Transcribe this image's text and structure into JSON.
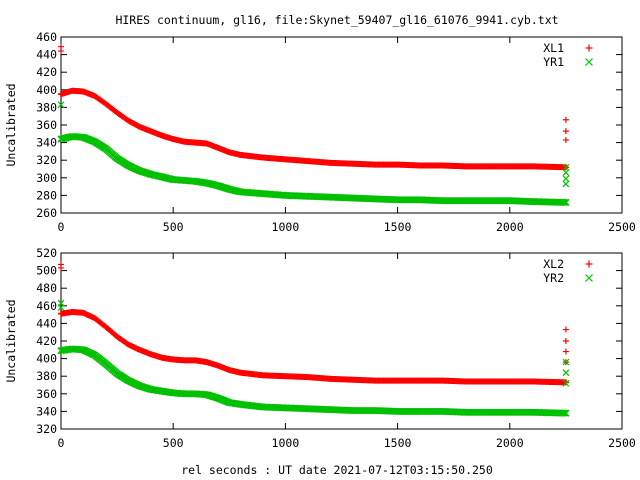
{
  "chart_data": [
    {
      "type": "scatter",
      "title": "HIRES continuum, gl16, file:Skynet_59407_gl16_61076_9941.cyb.txt",
      "xlabel": "",
      "ylabel": "Uncalibrated",
      "xlim": [
        0,
        2500
      ],
      "ylim": [
        260,
        460
      ],
      "xticks": [
        "0",
        "500",
        "1000",
        "1500",
        "2000",
        "2500"
      ],
      "yticks": [
        "260",
        "280",
        "300",
        "320",
        "340",
        "360",
        "380",
        "400",
        "420",
        "440",
        "460"
      ],
      "grid": false,
      "legend_position": "top-right",
      "series": [
        {
          "name": "XL1",
          "marker": "plus",
          "color": "#ff0000",
          "curve": [
            [
              0,
              395
            ],
            [
              50,
              399
            ],
            [
              100,
              398
            ],
            [
              150,
              393
            ],
            [
              200,
              384
            ],
            [
              250,
              374
            ],
            [
              300,
              365
            ],
            [
              350,
              358
            ],
            [
              400,
              353
            ],
            [
              450,
              348
            ],
            [
              500,
              344
            ],
            [
              550,
              341
            ],
            [
              600,
              340
            ],
            [
              650,
              339
            ],
            [
              700,
              334
            ],
            [
              750,
              329
            ],
            [
              800,
              326
            ],
            [
              900,
              323
            ],
            [
              1000,
              321
            ],
            [
              1100,
              319
            ],
            [
              1200,
              317
            ],
            [
              1300,
              316
            ],
            [
              1400,
              315
            ],
            [
              1500,
              315
            ],
            [
              1600,
              314
            ],
            [
              1700,
              314
            ],
            [
              1800,
              313
            ],
            [
              1900,
              313
            ],
            [
              2000,
              313
            ],
            [
              2100,
              313
            ],
            [
              2250,
              312
            ]
          ],
          "outliers": [
            [
              0,
              449
            ],
            [
              0,
              444
            ],
            [
              2250,
              366
            ],
            [
              2250,
              353
            ],
            [
              2250,
              343
            ]
          ]
        },
        {
          "name": "YR1",
          "marker": "cross",
          "color": "#00c000",
          "curve": [
            [
              0,
              344
            ],
            [
              50,
              347
            ],
            [
              100,
              346
            ],
            [
              150,
              341
            ],
            [
              200,
              333
            ],
            [
              250,
              322
            ],
            [
              300,
              314
            ],
            [
              350,
              308
            ],
            [
              400,
              304
            ],
            [
              450,
              301
            ],
            [
              500,
              298
            ],
            [
              550,
              297
            ],
            [
              600,
              296
            ],
            [
              650,
              294
            ],
            [
              700,
              291
            ],
            [
              750,
              287
            ],
            [
              800,
              284
            ],
            [
              900,
              282
            ],
            [
              1000,
              280
            ],
            [
              1100,
              279
            ],
            [
              1200,
              278
            ],
            [
              1300,
              277
            ],
            [
              1400,
              276
            ],
            [
              1500,
              275
            ],
            [
              1600,
              275
            ],
            [
              1700,
              274
            ],
            [
              1800,
              274
            ],
            [
              1900,
              274
            ],
            [
              2000,
              274
            ],
            [
              2100,
              273
            ],
            [
              2250,
              272
            ]
          ],
          "outliers": [
            [
              0,
              383
            ],
            [
              2250,
              312
            ],
            [
              2250,
              306
            ],
            [
              2250,
              299
            ],
            [
              2250,
              293
            ]
          ]
        }
      ]
    },
    {
      "type": "scatter",
      "title": "",
      "xlabel": "rel seconds : UT date 2021-07-12T03:15:50.250",
      "ylabel": "Uncalibrated",
      "xlim": [
        0,
        2500
      ],
      "ylim": [
        320,
        520
      ],
      "xticks": [
        "0",
        "500",
        "1000",
        "1500",
        "2000",
        "2500"
      ],
      "yticks": [
        "320",
        "340",
        "360",
        "380",
        "400",
        "420",
        "440",
        "460",
        "480",
        "500",
        "520"
      ],
      "grid": false,
      "legend_position": "top-right",
      "series": [
        {
          "name": "XL2",
          "marker": "plus",
          "color": "#ff0000",
          "curve": [
            [
              0,
              451
            ],
            [
              50,
              453
            ],
            [
              100,
              452
            ],
            [
              150,
              446
            ],
            [
              200,
              436
            ],
            [
              250,
              425
            ],
            [
              300,
              416
            ],
            [
              350,
              410
            ],
            [
              400,
              405
            ],
            [
              450,
              401
            ],
            [
              500,
              399
            ],
            [
              550,
              398
            ],
            [
              600,
              398
            ],
            [
              650,
              396
            ],
            [
              700,
              392
            ],
            [
              750,
              387
            ],
            [
              800,
              384
            ],
            [
              900,
              381
            ],
            [
              1000,
              380
            ],
            [
              1100,
              379
            ],
            [
              1200,
              377
            ],
            [
              1300,
              376
            ],
            [
              1400,
              375
            ],
            [
              1500,
              375
            ],
            [
              1600,
              375
            ],
            [
              1700,
              375
            ],
            [
              1800,
              374
            ],
            [
              1900,
              374
            ],
            [
              2000,
              374
            ],
            [
              2100,
              374
            ],
            [
              2250,
              373
            ]
          ],
          "outliers": [
            [
              0,
              507
            ],
            [
              0,
              503
            ],
            [
              2250,
              433
            ],
            [
              2250,
              420
            ],
            [
              2250,
              408
            ],
            [
              2250,
              396
            ]
          ]
        },
        {
          "name": "YR2",
          "marker": "cross",
          "color": "#00c000",
          "curve": [
            [
              0,
              409
            ],
            [
              50,
              411
            ],
            [
              100,
              410
            ],
            [
              150,
              404
            ],
            [
              200,
              394
            ],
            [
              250,
              383
            ],
            [
              300,
              375
            ],
            [
              350,
              369
            ],
            [
              400,
              365
            ],
            [
              450,
              363
            ],
            [
              500,
              361
            ],
            [
              550,
              360
            ],
            [
              600,
              360
            ],
            [
              650,
              359
            ],
            [
              700,
              355
            ],
            [
              750,
              350
            ],
            [
              800,
              348
            ],
            [
              900,
              345
            ],
            [
              1000,
              344
            ],
            [
              1100,
              343
            ],
            [
              1200,
              342
            ],
            [
              1300,
              341
            ],
            [
              1400,
              341
            ],
            [
              1500,
              340
            ],
            [
              1600,
              340
            ],
            [
              1700,
              340
            ],
            [
              1800,
              339
            ],
            [
              1900,
              339
            ],
            [
              2000,
              339
            ],
            [
              2100,
              339
            ],
            [
              2250,
              338
            ]
          ],
          "outliers": [
            [
              0,
              463
            ],
            [
              0,
              458
            ],
            [
              2250,
              396
            ],
            [
              2250,
              384
            ],
            [
              2250,
              372
            ]
          ]
        }
      ]
    }
  ]
}
